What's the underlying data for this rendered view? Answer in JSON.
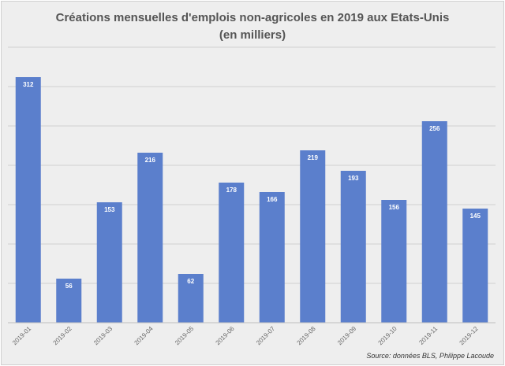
{
  "chart_data": {
    "type": "bar",
    "title_line1": "Créations mensuelles d'emplois non-agricoles en 2019 aux Etats-Unis",
    "title_line2": "(en milliers)",
    "categories": [
      "2019-01",
      "2019-02",
      "2019-03",
      "2019-04",
      "2019-05",
      "2019-06",
      "2019-07",
      "2019-08",
      "2019-09",
      "2019-10",
      "2019-11",
      "2019-12"
    ],
    "values": [
      312,
      56,
      153,
      216,
      62,
      178,
      166,
      219,
      193,
      156,
      256,
      145
    ],
    "data_labels": [
      "312",
      "56",
      "153",
      "216",
      "62",
      "178",
      "166",
      "219",
      "193",
      "156",
      "256",
      "145"
    ],
    "ylim": [
      0,
      350
    ],
    "gridlines": [
      50,
      100,
      150,
      200,
      250,
      300,
      350
    ],
    "y_tick_labels_visible": false,
    "xlabel": "",
    "ylabel": "",
    "bar_color": "#5b7fcc",
    "grid_color": "#d0d0d0",
    "source": "Source: données BLS, Philippe Lacoude"
  }
}
